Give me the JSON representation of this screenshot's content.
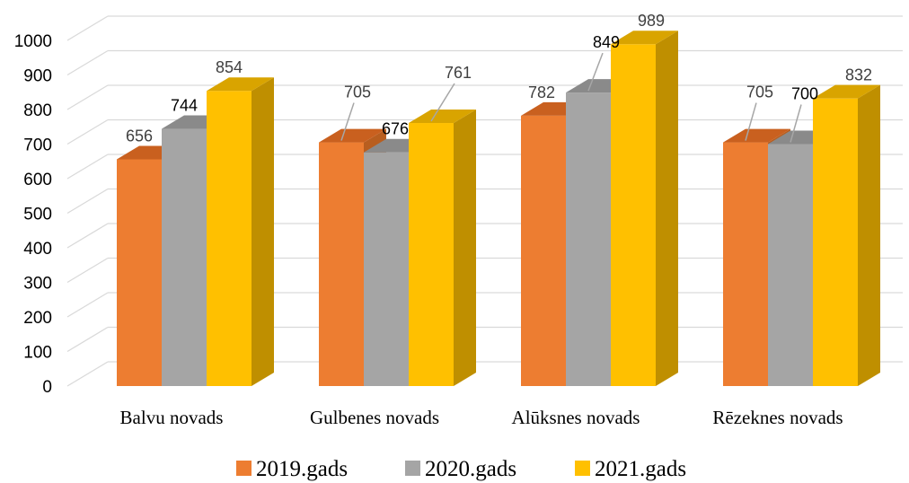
{
  "chart_data": {
    "type": "bar",
    "categories": [
      "Balvu novads",
      "Gulbenes novads",
      "Alūksnes novads",
      "Rēzeknes novads"
    ],
    "series": [
      {
        "name": "2019.gads",
        "values": [
          656,
          705,
          782,
          705
        ],
        "color": "#ED7D31"
      },
      {
        "name": "2020.gads",
        "values": [
          744,
          676,
          849,
          700
        ],
        "color": "#A5A5A5"
      },
      {
        "name": "2021.gads",
        "values": [
          854,
          761,
          989,
          832
        ],
        "color": "#FFC000"
      }
    ],
    "yticks": [
      "0",
      "100",
      "200",
      "300",
      "400",
      "500",
      "600",
      "700",
      "800",
      "900",
      "1000"
    ],
    "ylim": [
      0,
      1000
    ],
    "grid": true,
    "legend": "bottom",
    "three_d": true
  }
}
